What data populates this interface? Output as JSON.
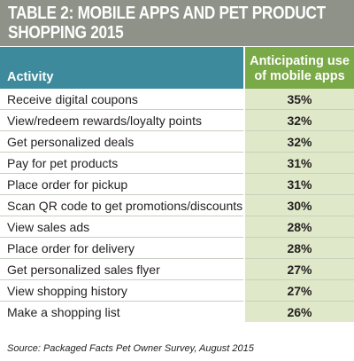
{
  "title_lines": [
    "TABLE 2: MOBILE APPS AND PET PRODUCT",
    "SHOPPING 2015"
  ],
  "headers": {
    "activity": "Activity",
    "metric_lines": [
      "Anticipating use",
      "of mobile apps"
    ]
  },
  "rows": [
    {
      "activity": "Receive digital coupons",
      "value": "35%"
    },
    {
      "activity": "View/redeem rewards/loyalty points",
      "value": "32%"
    },
    {
      "activity": "Get personalized deals",
      "value": "32%"
    },
    {
      "activity": "Pay for pet products",
      "value": "31%"
    },
    {
      "activity": "Place order for pickup",
      "value": "31%"
    },
    {
      "activity": "Scan QR code to get promotions/discounts",
      "value": "30%"
    },
    {
      "activity": "View sales ads",
      "value": "28%"
    },
    {
      "activity": "Place order for delivery",
      "value": "28%"
    },
    {
      "activity": "Get personalized sales flyer",
      "value": "27%"
    },
    {
      "activity": "View shopping history",
      "value": "27%"
    },
    {
      "activity": "Make a shopping list",
      "value": "26%"
    }
  ],
  "source": "Source: Packaged Facts Pet Owner Survey, August 2015",
  "colors": {
    "title_bg": "#8e9288",
    "header_activity_bg": "#3d8a9c",
    "header_metric_bg": "#7aa947",
    "value_cell_bg": "#dfe8c8"
  },
  "chart_data": {
    "type": "table",
    "title": "TABLE 2: MOBILE APPS AND PET PRODUCT SHOPPING 2015",
    "columns": [
      "Activity",
      "Anticipating use of mobile apps"
    ],
    "categories": [
      "Receive digital coupons",
      "View/redeem rewards/loyalty points",
      "Get personalized deals",
      "Pay for pet products",
      "Place order for pickup",
      "Scan QR code to get promotions/discounts",
      "View sales ads",
      "Place order for delivery",
      "Get personalized sales flyer",
      "View shopping history",
      "Make a shopping list"
    ],
    "values": [
      35,
      32,
      32,
      31,
      31,
      30,
      28,
      28,
      27,
      27,
      26
    ],
    "unit": "%"
  }
}
